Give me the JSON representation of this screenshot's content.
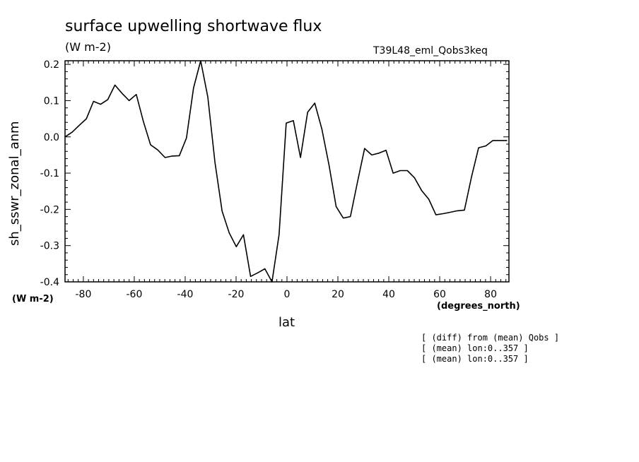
{
  "chart_data": {
    "type": "line",
    "title": "surface upwelling shortwave flux",
    "units": "(W m-2)",
    "run_id": "T39L48_eml_Qobs3keq",
    "xlabel": "lat",
    "xunits": "(degrees_north)",
    "ylabel": "sh_sswr_zonal_anm",
    "yunits": "(W m-2)",
    "xlim": [
      -87.2,
      87.2
    ],
    "ylim": [
      -0.4,
      0.21
    ],
    "xticks": [
      -80,
      -60,
      -40,
      -20,
      0,
      20,
      40,
      60,
      80
    ],
    "xtick_labels": [
      "-80",
      "-60",
      "-40",
      "-20",
      "0",
      "20",
      "40",
      "60",
      "80"
    ],
    "yticks": [
      -0.4,
      -0.3,
      -0.2,
      -0.1,
      0.0,
      0.1,
      0.2
    ],
    "ytick_labels": [
      "-0.4",
      "-0.3",
      "-0.2",
      "-0.1",
      "0.0",
      "0.1",
      "0.2"
    ],
    "grid": false,
    "series": [
      {
        "x": [
          -87.2,
          -84.4,
          -81.6,
          -78.8,
          -76.0,
          -73.2,
          -70.4,
          -67.6,
          -64.8,
          -62.0,
          -59.2,
          -56.4,
          -53.6,
          -50.8,
          -47.9,
          -45.1,
          -42.3,
          -39.5,
          -36.7,
          -33.9,
          -31.1,
          -28.3,
          -25.5,
          -22.7,
          -19.9,
          -17.1,
          -14.3,
          -11.5,
          -8.7,
          -5.9,
          -3.1,
          -0.3,
          2.5,
          5.3,
          8.1,
          10.9,
          13.7,
          16.5,
          19.3,
          22.1,
          24.9,
          27.7,
          30.5,
          33.3,
          36.1,
          38.9,
          41.7,
          44.5,
          47.3,
          50.1,
          52.9,
          55.7,
          58.5,
          61.3,
          64.1,
          66.9,
          69.7,
          72.5,
          75.3,
          78.1,
          80.9,
          83.7,
          86.5
        ],
        "y": [
          0.0,
          0.013,
          0.032,
          0.05,
          0.098,
          0.09,
          0.103,
          0.143,
          0.12,
          0.1,
          0.117,
          0.042,
          -0.022,
          -0.036,
          -0.057,
          -0.053,
          -0.052,
          -0.003,
          0.135,
          0.21,
          0.11,
          -0.07,
          -0.205,
          -0.265,
          -0.303,
          -0.27,
          -0.385,
          -0.375,
          -0.364,
          -0.4,
          -0.27,
          0.038,
          0.045,
          -0.057,
          0.068,
          0.093,
          0.022,
          -0.077,
          -0.192,
          -0.224,
          -0.22,
          -0.125,
          -0.032,
          -0.05,
          -0.045,
          -0.037,
          -0.1,
          -0.093,
          -0.093,
          -0.113,
          -0.148,
          -0.172,
          -0.215,
          -0.212,
          -0.208,
          -0.204,
          -0.202,
          -0.11,
          -0.03,
          -0.025,
          -0.01,
          -0.01,
          -0.01
        ]
      }
    ]
  },
  "notes": [
    "[ (diff) from (mean) Qobs ]",
    "[ (mean) lon:0..357 ]",
    "[ (mean) lon:0..357 ]"
  ]
}
